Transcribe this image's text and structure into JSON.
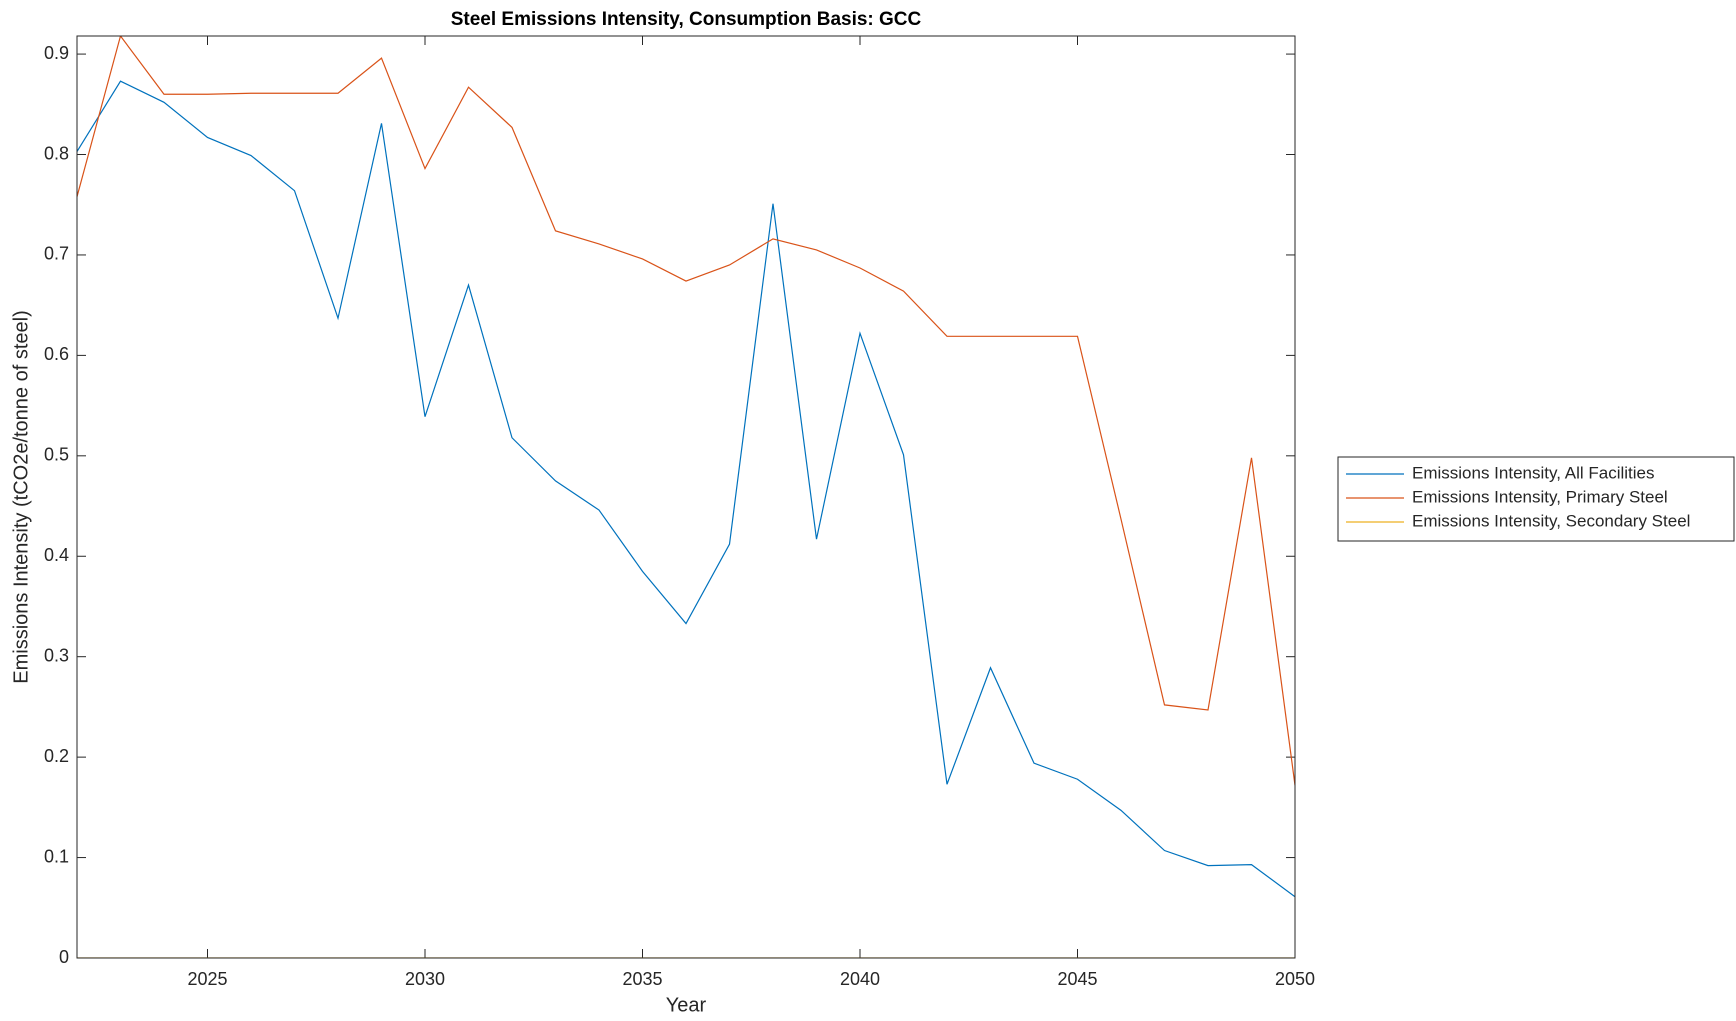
{
  "chart_data": {
    "type": "line",
    "title": "Steel Emissions Intensity, Consumption Basis: GCC",
    "xlabel": "Year",
    "ylabel": "Emissions Intensity (tCO2e/tonne of steel)",
    "x": [
      2022,
      2023,
      2024,
      2025,
      2026,
      2027,
      2028,
      2029,
      2030,
      2031,
      2032,
      2033,
      2034,
      2035,
      2036,
      2037,
      2038,
      2039,
      2040,
      2041,
      2042,
      2043,
      2044,
      2045,
      2046,
      2047,
      2048,
      2049,
      2050
    ],
    "series": [
      {
        "name": "Emissions Intensity, All Facilities",
        "color": "#0072BD",
        "values": [
          0.803,
          0.873,
          0.852,
          0.817,
          0.799,
          0.764,
          0.637,
          0.831,
          0.539,
          0.67,
          0.518,
          0.475,
          0.446,
          0.385,
          0.333,
          0.412,
          0.751,
          0.417,
          0.622,
          0.501,
          0.173,
          0.289,
          0.194,
          0.178,
          0.147,
          0.107,
          0.092,
          0.093,
          0.061
        ]
      },
      {
        "name": "Emissions Intensity, Primary Steel",
        "color": "#D95319",
        "values": [
          0.758,
          0.918,
          0.86,
          0.86,
          0.861,
          0.861,
          0.861,
          0.896,
          0.786,
          0.867,
          0.827,
          0.724,
          0.711,
          0.696,
          0.674,
          0.69,
          0.716,
          0.705,
          0.687,
          0.664,
          0.619,
          0.619,
          0.619,
          0.619,
          0.437,
          0.252,
          0.247,
          0.498,
          0.172
        ]
      },
      {
        "name": "Emissions Intensity, Secondary Steel",
        "color": "#EDB120",
        "values": [
          0,
          0,
          0,
          0,
          0,
          0,
          0,
          0,
          0,
          0,
          0,
          0,
          0,
          0,
          0,
          0,
          0,
          0,
          0,
          0,
          0,
          0,
          0,
          0,
          0,
          0,
          0,
          0,
          0
        ]
      }
    ],
    "xlim": [
      2022,
      2050
    ],
    "xticks": [
      2025,
      2030,
      2035,
      2040,
      2045,
      2050
    ],
    "ylim": [
      0,
      0.918
    ],
    "yticks": [
      0,
      0.1,
      0.2,
      0.3,
      0.4,
      0.5,
      0.6,
      0.7,
      0.8,
      0.9
    ],
    "legend": "outside-right"
  }
}
